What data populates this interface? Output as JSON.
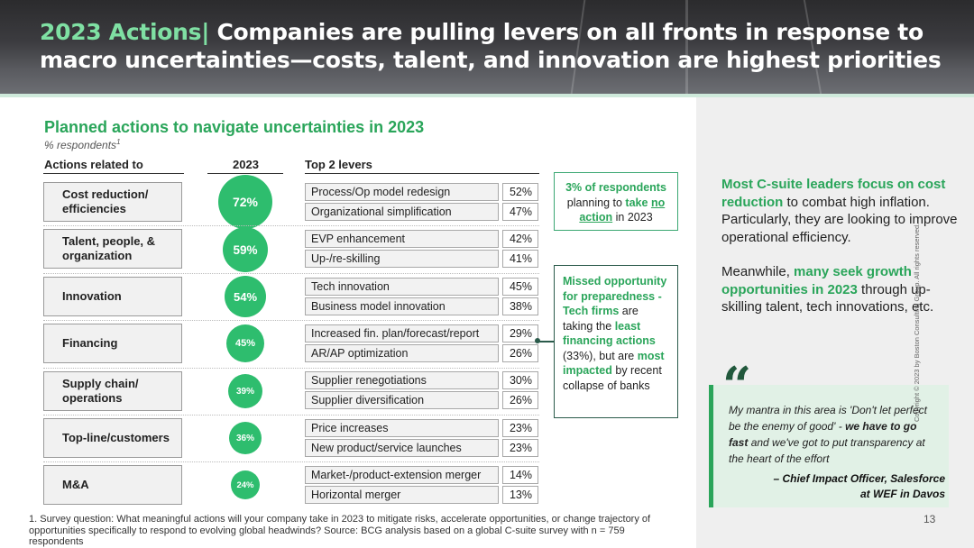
{
  "header": {
    "title_accent": "2023 Actions|",
    "title_line1": "Companies are pulling levers on all fronts in response to",
    "title_line2": "macro uncertainties—costs, talent, and innovation are highest priorities"
  },
  "chart": {
    "subtitle": "Planned actions to navigate uncertainties in 2023",
    "respondents_label": "% respondents",
    "respondents_note": "1",
    "col_actions": "Actions related to",
    "col_year": "2023",
    "col_levers": "Top 2 levers"
  },
  "categories": [
    {
      "label": "Cost reduction/ efficiencies",
      "value": "72%",
      "lever1": "Process/Op model redesign",
      "pct1": "52%",
      "lever2": "Organizational simplification",
      "pct2": "47%"
    },
    {
      "label": "Talent, people, & organization",
      "value": "59%",
      "lever1": "EVP enhancement",
      "pct1": "42%",
      "lever2": "Up-/re-skilling",
      "pct2": "41%"
    },
    {
      "label": "Innovation",
      "value": "54%",
      "lever1": "Tech innovation",
      "pct1": "45%",
      "lever2": "Business model innovation",
      "pct2": "38%"
    },
    {
      "label": "Financing",
      "value": "45%",
      "lever1": "Increased fin. plan/forecast/report",
      "pct1": "29%",
      "lever2": "AR/AP optimization",
      "pct2": "26%"
    },
    {
      "label": "Supply chain/ operations",
      "value": "39%",
      "lever1": "Supplier renegotiations",
      "pct1": "30%",
      "lever2": "Supplier diversification",
      "pct2": "26%"
    },
    {
      "label": "Top-line/customers",
      "value": "36%",
      "lever1": "Price increases",
      "pct1": "23%",
      "lever2": "New product/service launches",
      "pct2": "23%"
    },
    {
      "label": "M&A",
      "value": "24%",
      "lever1": "Market-/product-extension merger",
      "pct1": "14%",
      "lever2": "Horizontal merger",
      "pct2": "13%"
    }
  ],
  "callout1": {
    "pct": "3% of respondents",
    "line2": "planning to",
    "take": "take",
    "no": "no",
    "action": "action",
    "year": "in 2023"
  },
  "callout2": {
    "heading": "Missed opportunity for preparedness -",
    "tech": "Tech firms",
    "are": "are taking the",
    "least": "least financing actions",
    "mid": "(33%), but are",
    "most": "most impacted",
    "tail": "by recent collapse of banks"
  },
  "right": {
    "p1_bold": "Most C-suite leaders focus on cost reduction",
    "p1_rest": "to combat high inflation. Particularly, they are looking to improve operational efficiency.",
    "p2_pre": "Meanwhile,",
    "p2_bold": "many seek growth opportunities in 2023",
    "p2_rest": "through up-skilling talent, tech innovations, etc."
  },
  "quote": {
    "mark": "“",
    "text1": "My mantra in this area is 'Don't let perfect be the enemy of good' -",
    "text_bold": "we have to go fast",
    "text2": "and we've got to put transparency at the heart of the effort",
    "attribution1": "– Chief Impact Officer, Salesforce",
    "attribution2": "at WEF in Davos"
  },
  "footnote": "1. Survey question: What meaningful actions will your company take in 2023 to mitigate risks, accelerate opportunities, or change trajectory of opportunities specifically to respond to evolving global headwinds? Source: BCG analysis based on a global C-suite survey with n = 759 respondents",
  "page_number": "13",
  "copyright": "Copyright © 2023 by Boston Consulting Group. All rights reserved.",
  "colors": {
    "accent": "#2aa55a",
    "circle": "#2ebd6e",
    "title_accent": "#7fe0a3"
  }
}
